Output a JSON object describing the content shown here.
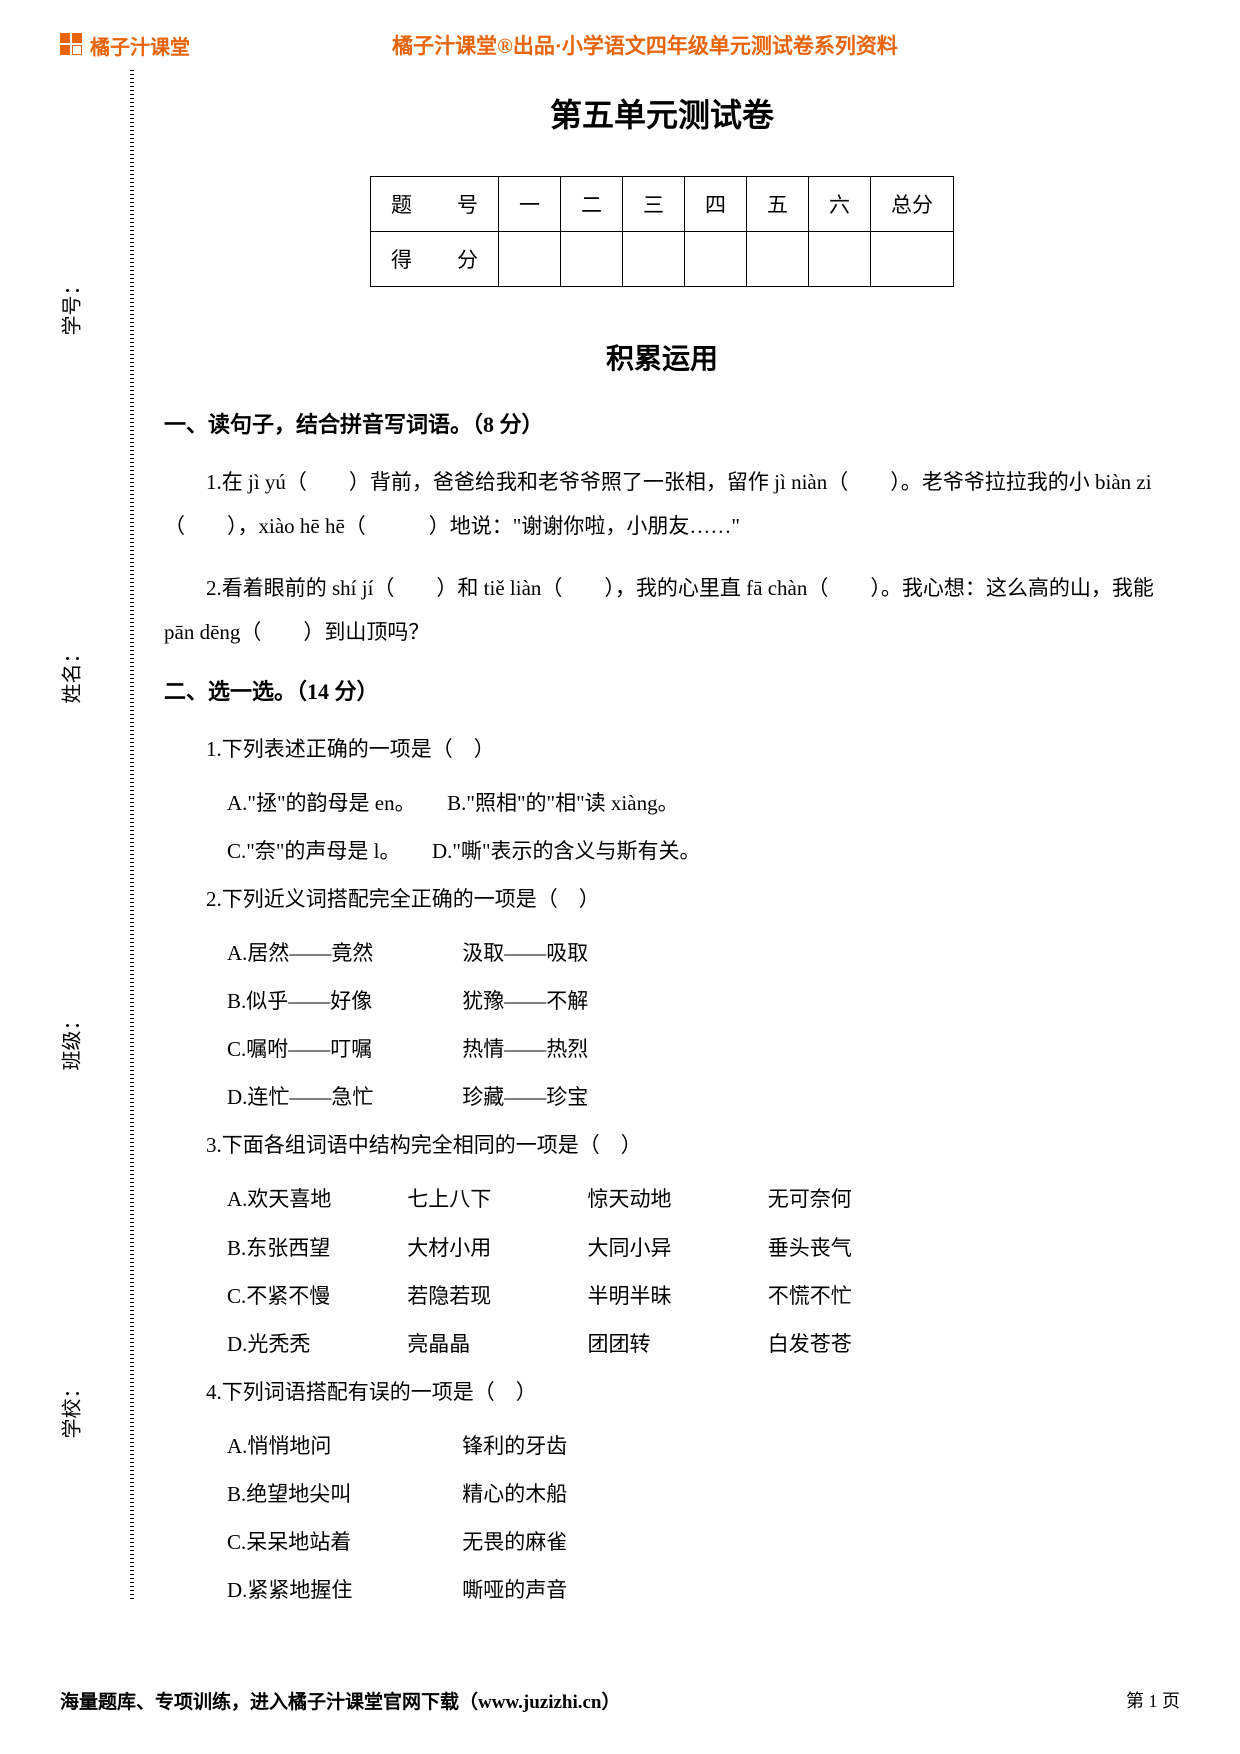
{
  "header": {
    "logo_text": "橘子汁课堂",
    "subtitle": "橘子汁课堂®出品·小学语文四年级单元测试卷系列资料"
  },
  "sidebar": {
    "fields": [
      {
        "label": "学号："
      },
      {
        "label": "姓名："
      },
      {
        "label": "班级："
      },
      {
        "label": "学校："
      }
    ]
  },
  "content": {
    "main_title": "第五单元测试卷",
    "score_table": {
      "row1": [
        "题　号",
        "一",
        "二",
        "三",
        "四",
        "五",
        "六",
        "总分"
      ],
      "row2_label": "得　分"
    },
    "section_title": "积累运用",
    "q1": {
      "heading": "一、读句子，结合拼音写词语。（8 分）",
      "item1": "1.在 jì yú（　　）背前，爸爸给我和老爷爷照了一张相，留作 jì niàn（　　）。老爷爷拉拉我的小 biàn zi（　　），xiào hē hē（　　　）地说：\"谢谢你啦，小朋友……\"",
      "item2": "2.看着眼前的 shí jí（　　）和 tiě liàn（　　），我的心里直 fā chàn（　　）。我心想：这么高的山，我能 pān dēng（　　）到山顶吗？"
    },
    "q2": {
      "heading": "二、选一选。（14 分）",
      "sub1": {
        "stem": "1.下列表述正确的一项是（　）",
        "options": [
          "A.\"拯\"的韵母是 en。　　B.\"照相\"的\"相\"读 xiàng。",
          "C.\"奈\"的声母是 l。　　D.\"嘶\"表示的含义与斯有关。"
        ]
      },
      "sub2": {
        "stem": "2.下列近义词搭配完全正确的一项是（　）",
        "options": [
          {
            "a": "A.居然——竟然",
            "b": "汲取——吸取"
          },
          {
            "a": "B.似乎——好像",
            "b": "犹豫——不解"
          },
          {
            "a": "C.嘱咐——叮嘱",
            "b": "热情——热烈"
          },
          {
            "a": "D.连忙——急忙",
            "b": "珍藏——珍宝"
          }
        ]
      },
      "sub3": {
        "stem": "3.下面各组词语中结构完全相同的一项是（　）",
        "options": [
          {
            "a": "A.欢天喜地",
            "b": "七上八下",
            "c": "惊天动地",
            "d": "无可奈何"
          },
          {
            "a": "B.东张西望",
            "b": "大材小用",
            "c": "大同小异",
            "d": "垂头丧气"
          },
          {
            "a": "C.不紧不慢",
            "b": "若隐若现",
            "c": "半明半昧",
            "d": "不慌不忙"
          },
          {
            "a": "D.光秃秃",
            "b": "亮晶晶",
            "c": "团团转",
            "d": "白发苍苍"
          }
        ]
      },
      "sub4": {
        "stem": "4.下列词语搭配有误的一项是（　）",
        "options": [
          {
            "a": "A.悄悄地问",
            "b": "锋利的牙齿"
          },
          {
            "a": "B.绝望地尖叫",
            "b": "精心的木船"
          },
          {
            "a": "C.呆呆地站着",
            "b": "无畏的麻雀"
          },
          {
            "a": "D.紧紧地握住",
            "b": "嘶哑的声音"
          }
        ]
      }
    }
  },
  "footer": {
    "left": "海量题库、专项训练，进入橘子汁课堂官网下载（www.juzizhi.cn）",
    "page": "第 1 页"
  },
  "colors": {
    "brand": "#e8640a",
    "text": "#000000",
    "bg": "#ffffff"
  }
}
